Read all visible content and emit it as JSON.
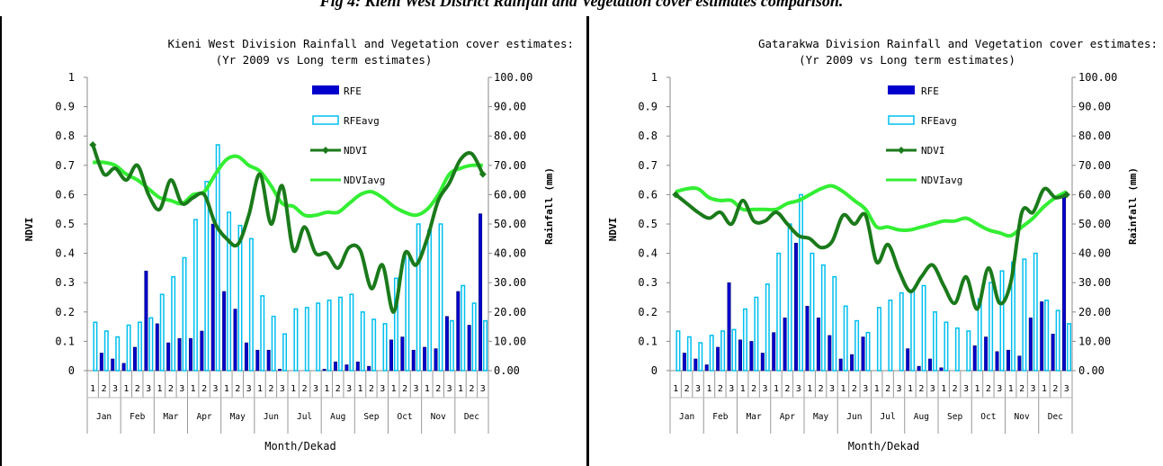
{
  "caption": "Fig 4: Kieni West District Rainfall and Vegetation cover estimates comparison.",
  "colors": {
    "rfe": "#0000cc",
    "rfeavg": "#00bfef",
    "ndvi": "#1a7a1a",
    "ndviavg": "#33ee33"
  },
  "chart_data": [
    {
      "type": "bar",
      "title_line1": "Kieni West Division Rainfall and Vegetation cover estimates:",
      "title_line2": "(Yr 2009 vs Long term estimates)",
      "xlabel": "Month/Dekad",
      "ylabel_left": "NDVI",
      "ylabel_right": "Rainfall (mm)",
      "ylim_left": [
        0,
        1
      ],
      "ylim_right": [
        0,
        100
      ],
      "yticks_left": [
        "0",
        "0.1",
        "0.2",
        "0.3",
        "0.4",
        "0.5",
        "0.6",
        "0.7",
        "0.8",
        "0.9",
        "1"
      ],
      "yticks_right": [
        "0.00",
        "10.00",
        "20.00",
        "30.00",
        "40.00",
        "50.00",
        "60.00",
        "70.00",
        "80.00",
        "90.00",
        "100.00"
      ],
      "months": [
        "Jan",
        "Feb",
        "Mar",
        "Apr",
        "May",
        "Jun",
        "Jul",
        "Aug",
        "Sep",
        "Oct",
        "Nov",
        "Dec"
      ],
      "dekads": [
        "1",
        "2",
        "3"
      ],
      "legend": [
        "RFE",
        "RFEavg",
        "NDVI",
        "NDVIavg"
      ],
      "series": [
        {
          "name": "RFE",
          "kind": "bar",
          "axis": "right",
          "values": [
            0,
            6,
            4,
            2.5,
            8,
            34,
            16,
            9.5,
            11,
            11,
            13.5,
            50,
            27,
            21,
            9.5,
            7,
            7,
            0.5,
            0,
            0,
            0,
            0.5,
            3,
            2,
            3,
            1.5,
            0,
            10.5,
            11.5,
            7,
            8,
            7.5,
            18.5,
            27,
            15.5,
            53.5
          ]
        },
        {
          "name": "RFEavg",
          "kind": "bar",
          "axis": "right",
          "values": [
            16.5,
            13.5,
            11.5,
            15.5,
            16.5,
            18,
            26,
            32,
            38.5,
            51.5,
            64.5,
            77,
            54,
            49.5,
            45,
            25.5,
            18.5,
            12.5,
            21,
            21.5,
            23,
            24,
            25,
            26,
            20,
            17.5,
            16,
            31.5,
            40,
            50,
            48,
            50,
            17,
            29,
            23,
            17
          ]
        },
        {
          "name": "NDVI",
          "kind": "line",
          "axis": "left",
          "values": [
            0.77,
            0.67,
            0.69,
            0.65,
            0.7,
            0.6,
            0.55,
            0.65,
            0.57,
            0.59,
            0.6,
            0.5,
            0.45,
            0.43,
            0.53,
            0.67,
            0.5,
            0.63,
            0.41,
            0.49,
            0.4,
            0.4,
            0.35,
            0.42,
            0.41,
            0.28,
            0.36,
            0.2,
            0.4,
            0.36,
            0.45,
            0.58,
            0.64,
            0.72,
            0.74,
            0.67
          ]
        },
        {
          "name": "NDVIavg",
          "kind": "line",
          "axis": "left",
          "values": [
            0.71,
            0.71,
            0.7,
            0.67,
            0.65,
            0.62,
            0.59,
            0.58,
            0.57,
            0.6,
            0.61,
            0.67,
            0.72,
            0.73,
            0.7,
            0.68,
            0.63,
            0.57,
            0.56,
            0.53,
            0.53,
            0.54,
            0.54,
            0.57,
            0.6,
            0.61,
            0.59,
            0.56,
            0.54,
            0.53,
            0.55,
            0.6,
            0.67,
            0.69,
            0.7,
            0.7
          ]
        }
      ]
    },
    {
      "type": "bar",
      "title_line1": "Gatarakwa Division Rainfall and Vegetation cover estimates:",
      "title_line2": "(Yr 2009 vs Long term estimates)",
      "xlabel": "Month/Dekad",
      "ylabel_left": "NDVI",
      "ylabel_right": "Rainfall (mm)",
      "ylim_left": [
        0,
        1
      ],
      "ylim_right": [
        0,
        100
      ],
      "yticks_left": [
        "0",
        "0.1",
        "0.2",
        "0.3",
        "0.4",
        "0.5",
        "0.6",
        "0.7",
        "0.8",
        "0.9",
        "1"
      ],
      "yticks_right": [
        "0.00",
        "10.00",
        "20.00",
        "30.00",
        "40.00",
        "50.00",
        "60.00",
        "70.00",
        "80.00",
        "90.00",
        "100.00"
      ],
      "months": [
        "Jan",
        "Feb",
        "Mar",
        "Apr",
        "May",
        "Jun",
        "Jul",
        "Aug",
        "Sep",
        "Oct",
        "Nov",
        "Dec"
      ],
      "dekads": [
        "1",
        "2",
        "3"
      ],
      "legend": [
        "RFE",
        "RFEavg",
        "NDVI",
        "NDVIavg"
      ],
      "series": [
        {
          "name": "RFE",
          "kind": "bar",
          "axis": "right",
          "values": [
            0,
            6,
            4,
            2,
            8,
            30,
            10.5,
            10,
            6,
            13,
            18,
            43.5,
            22,
            18,
            12,
            4,
            5.5,
            11.5,
            0,
            0,
            0,
            7.5,
            1.5,
            4,
            1,
            0,
            0,
            8.5,
            11.5,
            6.5,
            7,
            5,
            18,
            23.5,
            12.5,
            59.5
          ]
        },
        {
          "name": "RFEavg",
          "kind": "bar",
          "axis": "right",
          "values": [
            13.5,
            11.5,
            9.5,
            12,
            13.5,
            14,
            21,
            25,
            29.5,
            40,
            50,
            60,
            40,
            36,
            32,
            22,
            17,
            13,
            21.5,
            24,
            26.5,
            27.5,
            29,
            20,
            16.5,
            14.5,
            13.5,
            24.5,
            30,
            34,
            37,
            38,
            40,
            24,
            20.5,
            16
          ]
        },
        {
          "name": "NDVI",
          "kind": "line",
          "axis": "left",
          "values": [
            0.6,
            0.57,
            0.54,
            0.52,
            0.54,
            0.5,
            0.58,
            0.51,
            0.51,
            0.54,
            0.5,
            0.46,
            0.45,
            0.42,
            0.44,
            0.53,
            0.5,
            0.53,
            0.37,
            0.43,
            0.34,
            0.27,
            0.32,
            0.36,
            0.29,
            0.23,
            0.32,
            0.21,
            0.35,
            0.23,
            0.3,
            0.54,
            0.54,
            0.62,
            0.59,
            0.6
          ]
        },
        {
          "name": "NDVIavg",
          "kind": "line",
          "axis": "left",
          "values": [
            0.61,
            0.62,
            0.62,
            0.59,
            0.58,
            0.58,
            0.55,
            0.55,
            0.55,
            0.55,
            0.57,
            0.58,
            0.6,
            0.62,
            0.63,
            0.61,
            0.58,
            0.55,
            0.49,
            0.49,
            0.48,
            0.48,
            0.49,
            0.5,
            0.51,
            0.51,
            0.52,
            0.5,
            0.48,
            0.47,
            0.46,
            0.49,
            0.52,
            0.56,
            0.59,
            0.61
          ]
        }
      ]
    }
  ]
}
